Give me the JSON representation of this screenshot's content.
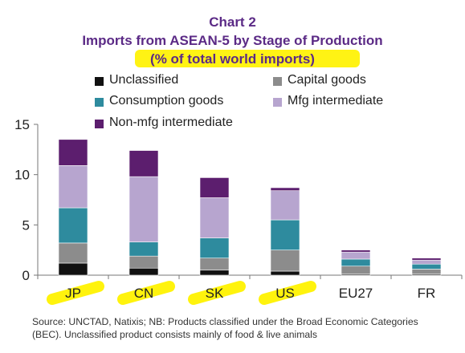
{
  "colors": {
    "title": "#5b2a86",
    "highlight": "#fff200",
    "axis": "#777777"
  },
  "chart_data": {
    "type": "bar",
    "stacked": true,
    "title": "Chart 2",
    "subtitle": "Imports from ASEAN-5 by Stage of Production",
    "subtitle2": "(% of total world imports)",
    "xlabel": "",
    "ylabel": "",
    "ylim": [
      0,
      15
    ],
    "yticks": [
      0,
      5,
      10,
      15
    ],
    "grid": false,
    "legend_position": "top",
    "categories": [
      "JP",
      "CN",
      "SK",
      "US",
      "EU27",
      "FR"
    ],
    "highlighted_categories": [
      "JP",
      "CN",
      "SK",
      "US"
    ],
    "series": [
      {
        "name": "Unclassified",
        "color": "#111111",
        "values": [
          1.2,
          0.7,
          0.5,
          0.4,
          0.1,
          0.1
        ]
      },
      {
        "name": "Capital goods",
        "color": "#8c8c8c",
        "values": [
          2.0,
          1.2,
          1.2,
          2.1,
          0.8,
          0.5
        ]
      },
      {
        "name": "Consumption goods",
        "color": "#2e8b9e",
        "values": [
          3.5,
          1.4,
          2.0,
          3.0,
          0.7,
          0.5
        ]
      },
      {
        "name": "Mfg intermediate",
        "color": "#b7a5cf",
        "values": [
          4.2,
          6.5,
          4.0,
          2.9,
          0.7,
          0.4
        ]
      },
      {
        "name": "Non-mfg intermediate",
        "color": "#5c1e6e",
        "values": [
          2.6,
          2.6,
          2.0,
          0.3,
          0.2,
          0.2
        ]
      }
    ]
  },
  "source_note": "Source: UNCTAD, Natixis; NB: Products classified under the Broad Economic Categories (BEC). Unclassified product consists mainly of food & live animals"
}
